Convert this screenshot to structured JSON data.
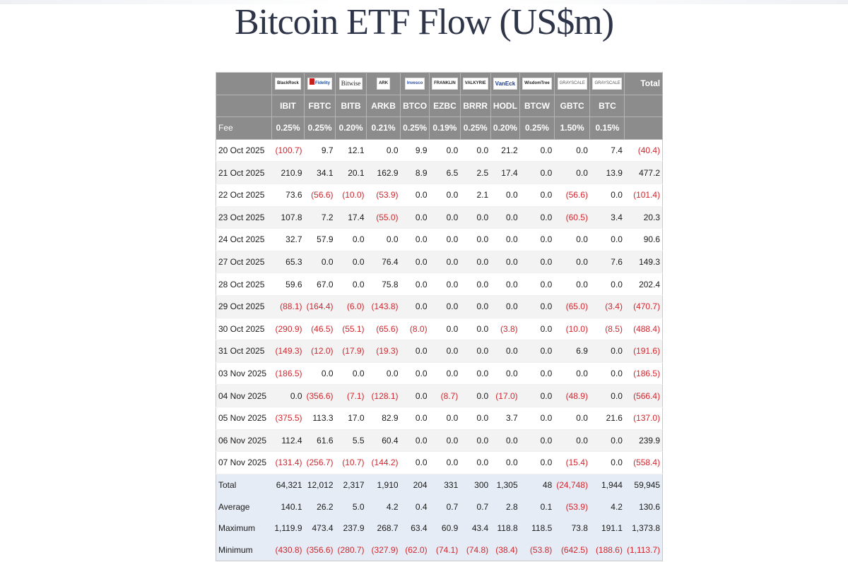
{
  "title": "Bitcoin ETF Flow (US$m)",
  "fee_label": "Fee",
  "total_header": "Total",
  "issuers": [
    {
      "logo": "BlackRock",
      "logo_style": "blackrock"
    },
    {
      "logo": "Fidelity",
      "logo_style": "fidelity"
    },
    {
      "logo": "Bitwise",
      "logo_style": "bitwise"
    },
    {
      "logo": "ARK",
      "logo_style": "ark"
    },
    {
      "logo": "Invesco",
      "logo_style": "invesco"
    },
    {
      "logo": "FRANKLIN",
      "logo_style": "franklin"
    },
    {
      "logo": "VALKYRIE",
      "logo_style": "valkyrie"
    },
    {
      "logo": "VanEck",
      "logo_style": "vaneck"
    },
    {
      "logo": "WisdomTree",
      "logo_style": "wisdomtree"
    },
    {
      "logo": "GRAYSCALE",
      "logo_style": "grayscale"
    },
    {
      "logo": "GRAYSCALE",
      "logo_style": "grayscale"
    }
  ],
  "tickers": [
    "IBIT",
    "FBTC",
    "BITB",
    "ARKB",
    "BTCO",
    "EZBC",
    "BRRR",
    "HODL",
    "BTCW",
    "GBTC",
    "BTC"
  ],
  "fees": [
    "0.25%",
    "0.25%",
    "0.20%",
    "0.21%",
    "0.25%",
    "0.19%",
    "0.25%",
    "0.20%",
    "0.25%",
    "1.50%",
    "0.15%"
  ],
  "rows": [
    {
      "date": "20 Oct 2025",
      "values": [
        "(100.7)",
        "9.7",
        "12.1",
        "0.0",
        "9.9",
        "0.0",
        "0.0",
        "21.2",
        "0.0",
        "0.0",
        "7.4",
        "(40.4)"
      ]
    },
    {
      "date": "21 Oct 2025",
      "values": [
        "210.9",
        "34.1",
        "20.1",
        "162.9",
        "8.9",
        "6.5",
        "2.5",
        "17.4",
        "0.0",
        "0.0",
        "13.9",
        "477.2"
      ]
    },
    {
      "date": "22 Oct 2025",
      "values": [
        "73.6",
        "(56.6)",
        "(10.0)",
        "(53.9)",
        "0.0",
        "0.0",
        "2.1",
        "0.0",
        "0.0",
        "(56.6)",
        "0.0",
        "(101.4)"
      ]
    },
    {
      "date": "23 Oct 2025",
      "values": [
        "107.8",
        "7.2",
        "17.4",
        "(55.0)",
        "0.0",
        "0.0",
        "0.0",
        "0.0",
        "0.0",
        "(60.5)",
        "3.4",
        "20.3"
      ]
    },
    {
      "date": "24 Oct 2025",
      "values": [
        "32.7",
        "57.9",
        "0.0",
        "0.0",
        "0.0",
        "0.0",
        "0.0",
        "0.0",
        "0.0",
        "0.0",
        "0.0",
        "90.6"
      ]
    },
    {
      "date": "27 Oct 2025",
      "values": [
        "65.3",
        "0.0",
        "0.0",
        "76.4",
        "0.0",
        "0.0",
        "0.0",
        "0.0",
        "0.0",
        "0.0",
        "7.6",
        "149.3"
      ]
    },
    {
      "date": "28 Oct 2025",
      "values": [
        "59.6",
        "67.0",
        "0.0",
        "75.8",
        "0.0",
        "0.0",
        "0.0",
        "0.0",
        "0.0",
        "0.0",
        "0.0",
        "202.4"
      ]
    },
    {
      "date": "29 Oct 2025",
      "values": [
        "(88.1)",
        "(164.4)",
        "(6.0)",
        "(143.8)",
        "0.0",
        "0.0",
        "0.0",
        "0.0",
        "0.0",
        "(65.0)",
        "(3.4)",
        "(470.7)"
      ]
    },
    {
      "date": "30 Oct 2025",
      "values": [
        "(290.9)",
        "(46.5)",
        "(55.1)",
        "(65.6)",
        "(8.0)",
        "0.0",
        "0.0",
        "(3.8)",
        "0.0",
        "(10.0)",
        "(8.5)",
        "(488.4)"
      ]
    },
    {
      "date": "31 Oct 2025",
      "values": [
        "(149.3)",
        "(12.0)",
        "(17.9)",
        "(19.3)",
        "0.0",
        "0.0",
        "0.0",
        "0.0",
        "0.0",
        "6.9",
        "0.0",
        "(191.6)"
      ]
    },
    {
      "date": "03 Nov 2025",
      "values": [
        "(186.5)",
        "0.0",
        "0.0",
        "0.0",
        "0.0",
        "0.0",
        "0.0",
        "0.0",
        "0.0",
        "0.0",
        "0.0",
        "(186.5)"
      ]
    },
    {
      "date": "04 Nov 2025",
      "values": [
        "0.0",
        "(356.6)",
        "(7.1)",
        "(128.1)",
        "0.0",
        "(8.7)",
        "0.0",
        "(17.0)",
        "0.0",
        "(48.9)",
        "0.0",
        "(566.4)"
      ]
    },
    {
      "date": "05 Nov 2025",
      "values": [
        "(375.5)",
        "113.3",
        "17.0",
        "82.9",
        "0.0",
        "0.0",
        "0.0",
        "3.7",
        "0.0",
        "0.0",
        "21.6",
        "(137.0)"
      ]
    },
    {
      "date": "06 Nov 2025",
      "values": [
        "112.4",
        "61.6",
        "5.5",
        "60.4",
        "0.0",
        "0.0",
        "0.0",
        "0.0",
        "0.0",
        "0.0",
        "0.0",
        "239.9"
      ]
    },
    {
      "date": "07 Nov 2025",
      "values": [
        "(131.4)",
        "(256.7)",
        "(10.7)",
        "(144.2)",
        "0.0",
        "0.0",
        "0.0",
        "0.0",
        "0.0",
        "(15.4)",
        "0.0",
        "(558.4)"
      ]
    }
  ],
  "summary": [
    {
      "label": "Total",
      "values": [
        "64,321",
        "12,012",
        "2,317",
        "1,910",
        "204",
        "331",
        "300",
        "1,305",
        "48",
        "(24,748)",
        "1,944",
        "59,945"
      ]
    },
    {
      "label": "Average",
      "values": [
        "140.1",
        "26.2",
        "5.0",
        "4.2",
        "0.4",
        "0.7",
        "0.7",
        "2.8",
        "0.1",
        "(53.9)",
        "4.2",
        "130.6"
      ]
    },
    {
      "label": "Maximum",
      "values": [
        "1,119.9",
        "473.4",
        "237.9",
        "268.7",
        "63.4",
        "60.9",
        "43.4",
        "118.8",
        "118.5",
        "73.8",
        "191.1",
        "1,373.8"
      ]
    },
    {
      "label": "Minimum",
      "values": [
        "(430.8)",
        "(356.6)",
        "(280.7)",
        "(327.9)",
        "(62.0)",
        "(74.1)",
        "(74.8)",
        "(38.4)",
        "(53.8)",
        "(642.5)",
        "(188.6)",
        "(1,113.7)"
      ]
    }
  ],
  "colors": {
    "negative": "#d0262d",
    "header_bg": "#8c8c8c",
    "summary_bg": "#e6ecf5",
    "title": "#2f3549"
  }
}
